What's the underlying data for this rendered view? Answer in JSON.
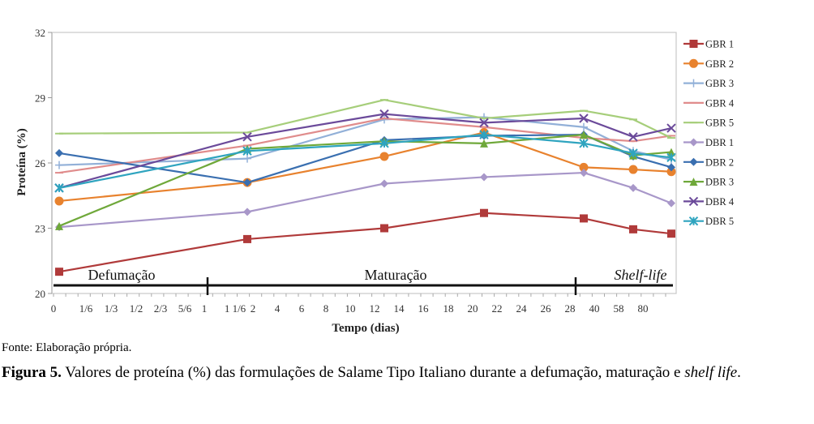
{
  "chart_data": {
    "type": "line",
    "title": "",
    "xlabel": "Tempo (dias)",
    "ylabel": "Proteína (%)",
    "ylim": [
      20,
      32
    ],
    "yticks": [
      20,
      23,
      26,
      29,
      32
    ],
    "grid": false,
    "legend_position": "right",
    "x_tick_labels": [
      "0",
      "1/6",
      "1/3",
      "1/2",
      "2/3",
      "5/6",
      "1",
      "1 1/6",
      "2",
      "4",
      "6",
      "8",
      "10",
      "12",
      "14",
      "16",
      "18",
      "20",
      "22",
      "24",
      "26",
      "28",
      "40",
      "58",
      "80"
    ],
    "x": [
      "0",
      "2",
      "12",
      "20",
      "28",
      "58",
      "80+"
    ],
    "phases": [
      {
        "label": "Defumação",
        "italic": false
      },
      {
        "label": "Maturação",
        "italic": false
      },
      {
        "label": "Shelf-life",
        "italic": true
      }
    ],
    "series": [
      {
        "name": "GBR 1",
        "color": "#B03A3A",
        "marker": "square",
        "values": [
          21.0,
          22.5,
          23.0,
          23.7,
          23.45,
          22.95,
          22.75
        ]
      },
      {
        "name": "GBR 2",
        "color": "#E8822E",
        "marker": "circle",
        "values": [
          24.25,
          25.1,
          26.3,
          27.4,
          25.8,
          25.7,
          25.6
        ]
      },
      {
        "name": "GBR 3",
        "color": "#92B0D8",
        "marker": "plus",
        "values": [
          25.9,
          26.2,
          28.0,
          28.1,
          27.65,
          26.55,
          26.15
        ]
      },
      {
        "name": "GBR 4",
        "color": "#E08C8C",
        "marker": "dash",
        "values": [
          25.55,
          26.8,
          28.05,
          27.65,
          27.15,
          27.0,
          27.25
        ]
      },
      {
        "name": "GBR 5",
        "color": "#A6CE7A",
        "marker": "dash",
        "values": [
          27.35,
          27.4,
          28.9,
          28.05,
          28.4,
          28.0,
          27.15
        ]
      },
      {
        "name": "DBR 1",
        "color": "#A897C9",
        "marker": "diamond",
        "values": [
          23.05,
          23.75,
          25.05,
          25.35,
          25.55,
          24.85,
          24.15
        ]
      },
      {
        "name": "DBR 2",
        "color": "#3A6FB0",
        "marker": "diamond",
        "values": [
          26.45,
          25.1,
          27.05,
          27.25,
          27.3,
          26.3,
          25.8
        ]
      },
      {
        "name": "DBR 3",
        "color": "#6FA83A",
        "marker": "triangle",
        "values": [
          23.1,
          26.65,
          27.0,
          26.9,
          27.3,
          26.35,
          26.5
        ]
      },
      {
        "name": "DBR 4",
        "color": "#6B4A9A",
        "marker": "x",
        "values": [
          24.85,
          27.2,
          28.25,
          27.85,
          28.05,
          27.2,
          27.6
        ]
      },
      {
        "name": "DBR 5",
        "color": "#2FA4BF",
        "marker": "star",
        "values": [
          24.85,
          26.55,
          26.9,
          27.3,
          26.9,
          26.45,
          26.25
        ]
      }
    ]
  },
  "source": "Fonte: Elaboração própria.",
  "caption": {
    "label": "Figura 5.",
    "text": " Valores de proteína (%) das formulações de Salame Tipo Italiano durante a defumação, maturação e ",
    "italic_tail": "shelf life",
    "end": "."
  }
}
